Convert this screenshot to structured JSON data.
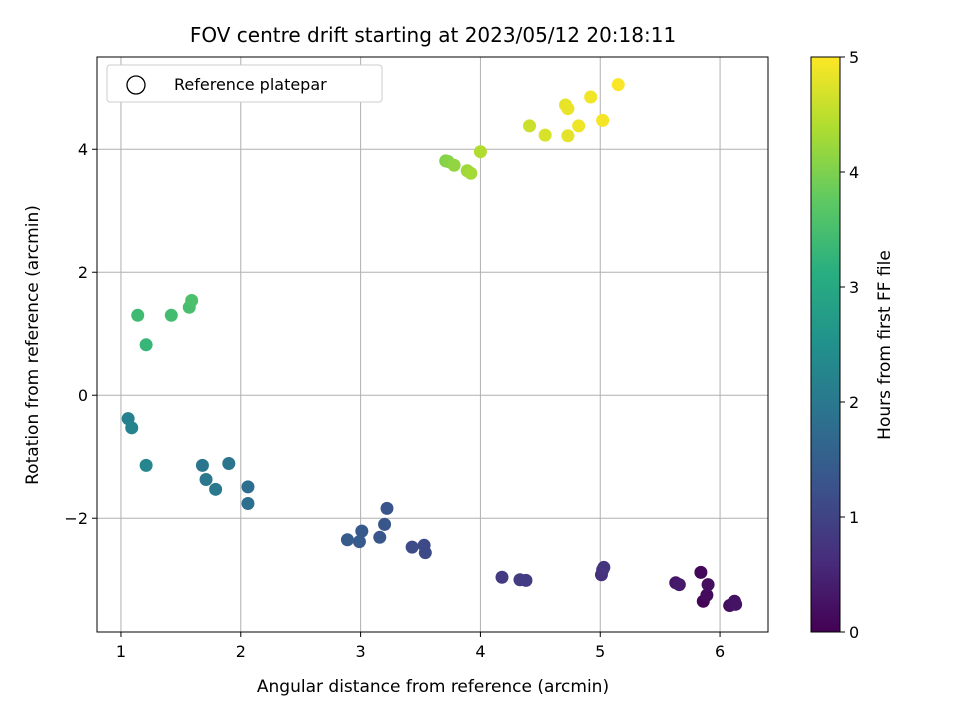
{
  "chart_data": {
    "type": "scatter",
    "title": "FOV centre drift starting at 2023/05/12 20:18:11",
    "xlabel": "Angular distance from reference (arcmin)",
    "ylabel": "Rotation from reference (arcmin)",
    "xlim": [
      0.8,
      6.4
    ],
    "ylim": [
      -3.85,
      5.5
    ],
    "xticks": [
      1,
      2,
      3,
      4,
      5,
      6
    ],
    "yticks": [
      -2,
      0,
      2,
      4
    ],
    "grid": true,
    "legend": {
      "position": "top-left",
      "entries": [
        "Reference platepar"
      ]
    },
    "colorbar": {
      "label": "Hours from first FF file",
      "range": [
        0,
        5
      ],
      "ticks": [
        0,
        1,
        2,
        3,
        4,
        5
      ],
      "colormap": "viridis"
    },
    "points": [
      {
        "x": 5.86,
        "y": -3.35,
        "c": 0.05
      },
      {
        "x": 5.84,
        "y": -2.88,
        "c": 0.1
      },
      {
        "x": 5.89,
        "y": -3.25,
        "c": 0.15
      },
      {
        "x": 5.9,
        "y": -3.08,
        "c": 0.18
      },
      {
        "x": 6.08,
        "y": -3.42,
        "c": 0.2
      },
      {
        "x": 6.12,
        "y": -3.35,
        "c": 0.22
      },
      {
        "x": 6.13,
        "y": -3.4,
        "c": 0.25
      },
      {
        "x": 5.63,
        "y": -3.05,
        "c": 0.3
      },
      {
        "x": 5.66,
        "y": -3.08,
        "c": 0.35
      },
      {
        "x": 5.01,
        "y": -2.92,
        "c": 0.7
      },
      {
        "x": 5.02,
        "y": -2.84,
        "c": 0.72
      },
      {
        "x": 5.03,
        "y": -2.8,
        "c": 0.75
      },
      {
        "x": 4.18,
        "y": -2.96,
        "c": 0.85
      },
      {
        "x": 4.33,
        "y": -3.0,
        "c": 0.88
      },
      {
        "x": 4.38,
        "y": -3.01,
        "c": 0.9
      },
      {
        "x": 3.53,
        "y": -2.44,
        "c": 1.1
      },
      {
        "x": 3.54,
        "y": -2.56,
        "c": 1.12
      },
      {
        "x": 3.43,
        "y": -2.47,
        "c": 1.15
      },
      {
        "x": 3.22,
        "y": -1.84,
        "c": 1.3
      },
      {
        "x": 3.2,
        "y": -2.1,
        "c": 1.32
      },
      {
        "x": 3.16,
        "y": -2.31,
        "c": 1.35
      },
      {
        "x": 3.01,
        "y": -2.21,
        "c": 1.4
      },
      {
        "x": 2.99,
        "y": -2.38,
        "c": 1.42
      },
      {
        "x": 2.89,
        "y": -2.35,
        "c": 1.45
      },
      {
        "x": 2.06,
        "y": -1.49,
        "c": 1.8
      },
      {
        "x": 2.06,
        "y": -1.76,
        "c": 1.82
      },
      {
        "x": 1.9,
        "y": -1.11,
        "c": 1.9
      },
      {
        "x": 1.68,
        "y": -1.14,
        "c": 1.95
      },
      {
        "x": 1.71,
        "y": -1.37,
        "c": 1.98
      },
      {
        "x": 1.79,
        "y": -1.53,
        "c": 2.0
      },
      {
        "x": 1.06,
        "y": -0.38,
        "c": 2.15
      },
      {
        "x": 1.09,
        "y": -0.53,
        "c": 2.2
      },
      {
        "x": 1.21,
        "y": -1.14,
        "c": 2.3
      },
      {
        "x": 1.21,
        "y": 0.82,
        "c": 3.3
      },
      {
        "x": 1.14,
        "y": 1.3,
        "c": 3.4
      },
      {
        "x": 1.42,
        "y": 1.3,
        "c": 3.45
      },
      {
        "x": 1.57,
        "y": 1.43,
        "c": 3.5
      },
      {
        "x": 1.59,
        "y": 1.54,
        "c": 3.55
      },
      {
        "x": 3.71,
        "y": 3.81,
        "c": 4.05
      },
      {
        "x": 3.73,
        "y": 3.8,
        "c": 4.08
      },
      {
        "x": 3.78,
        "y": 3.74,
        "c": 4.15
      },
      {
        "x": 3.89,
        "y": 3.65,
        "c": 4.25
      },
      {
        "x": 3.92,
        "y": 3.61,
        "c": 4.3
      },
      {
        "x": 4.0,
        "y": 3.96,
        "c": 4.4
      },
      {
        "x": 4.41,
        "y": 4.38,
        "c": 4.6
      },
      {
        "x": 4.54,
        "y": 4.23,
        "c": 4.7
      },
      {
        "x": 4.73,
        "y": 4.22,
        "c": 4.8
      },
      {
        "x": 4.71,
        "y": 4.72,
        "c": 4.82
      },
      {
        "x": 4.73,
        "y": 4.66,
        "c": 4.85
      },
      {
        "x": 4.82,
        "y": 4.38,
        "c": 4.88
      },
      {
        "x": 4.92,
        "y": 4.85,
        "c": 4.9
      },
      {
        "x": 5.02,
        "y": 4.47,
        "c": 4.93
      },
      {
        "x": 5.15,
        "y": 5.05,
        "c": 4.97
      }
    ]
  }
}
